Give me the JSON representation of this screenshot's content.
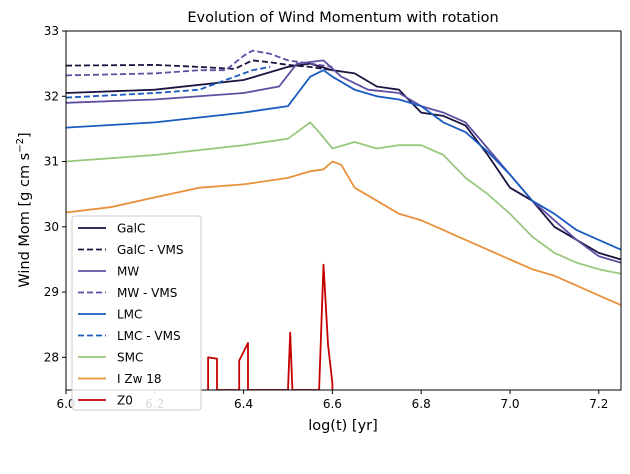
{
  "chart_data": {
    "type": "line",
    "title": "Evolution of Wind Momentum with rotation",
    "xlabel": "log(t) [yr]",
    "ylabel": "Wind Mom [g cm s",
    "ylabel_sup": "−2",
    "ylabel_end": "]",
    "xlim": [
      6.0,
      7.25
    ],
    "ylim": [
      27.5,
      33.0
    ],
    "x_ticks": [
      "6.0",
      "6.2",
      "6.4",
      "6.6",
      "6.8",
      "7.0",
      "7.2"
    ],
    "x_tick_values": [
      6.0,
      6.2,
      6.4,
      6.6,
      6.8,
      7.0,
      7.2
    ],
    "y_ticks": [
      "28",
      "29",
      "30",
      "31",
      "32",
      "33"
    ],
    "y_tick_values": [
      28,
      29,
      30,
      31,
      32,
      33
    ],
    "grid": false,
    "legend_position": "lower-left",
    "series": [
      {
        "name": "GalC",
        "color": "#1c1340",
        "dash": "solid",
        "x": [
          6.0,
          6.2,
          6.4,
          6.5,
          6.55,
          6.6,
          6.65,
          6.7,
          6.75,
          6.8,
          6.85,
          6.9,
          6.95,
          7.0,
          7.05,
          7.1,
          7.15,
          7.2,
          7.25
        ],
        "y": [
          32.05,
          32.1,
          32.25,
          32.45,
          32.5,
          32.4,
          32.35,
          32.15,
          32.1,
          31.75,
          31.7,
          31.55,
          31.1,
          30.6,
          30.4,
          30.0,
          29.8,
          29.6,
          29.5
        ]
      },
      {
        "name": "GalC - VMS",
        "color": "#1c1340",
        "dash": "dashed",
        "x": [
          6.0,
          6.2,
          6.3,
          6.38,
          6.42,
          6.46,
          6.5,
          6.55,
          6.6
        ],
        "y": [
          32.47,
          32.48,
          32.45,
          32.42,
          32.55,
          32.52,
          32.48,
          32.45,
          32.4
        ]
      },
      {
        "name": "MW",
        "color": "#5e4fa2",
        "dash": "solid",
        "x": [
          6.0,
          6.2,
          6.4,
          6.48,
          6.52,
          6.58,
          6.62,
          6.68,
          6.75,
          6.8,
          6.85,
          6.9,
          6.95,
          7.0,
          7.05,
          7.1,
          7.15,
          7.2,
          7.25
        ],
        "y": [
          31.9,
          31.95,
          32.05,
          32.15,
          32.5,
          32.55,
          32.3,
          32.1,
          32.05,
          31.85,
          31.75,
          31.6,
          31.2,
          30.8,
          30.4,
          30.1,
          29.8,
          29.55,
          29.45
        ]
      },
      {
        "name": "MW - VMS",
        "color": "#5e4fa2",
        "dash": "dashed",
        "x": [
          6.0,
          6.2,
          6.3,
          6.36,
          6.4,
          6.42,
          6.46,
          6.5,
          6.55,
          6.6
        ],
        "y": [
          32.32,
          32.35,
          32.4,
          32.4,
          32.62,
          32.7,
          32.65,
          32.55,
          32.5,
          32.45
        ]
      },
      {
        "name": "LMC",
        "color": "#1a5bbf",
        "dash": "solid",
        "x": [
          6.0,
          6.2,
          6.4,
          6.5,
          6.55,
          6.58,
          6.6,
          6.65,
          6.7,
          6.75,
          6.8,
          6.85,
          6.9,
          6.95,
          7.0,
          7.05,
          7.1,
          7.15,
          7.2,
          7.25
        ],
        "y": [
          31.52,
          31.6,
          31.75,
          31.85,
          32.3,
          32.4,
          32.3,
          32.1,
          32.0,
          31.95,
          31.85,
          31.6,
          31.45,
          31.15,
          30.8,
          30.4,
          30.2,
          29.95,
          29.8,
          29.65
        ]
      },
      {
        "name": "LMC - VMS",
        "color": "#1a5bbf",
        "dash": "dashed",
        "x": [
          6.0,
          6.2,
          6.3,
          6.34,
          6.38,
          6.42,
          6.46
        ],
        "y": [
          31.98,
          32.05,
          32.1,
          32.2,
          32.3,
          32.4,
          32.45
        ]
      },
      {
        "name": "SMC",
        "color": "#99c87e",
        "dash": "solid",
        "x": [
          6.0,
          6.2,
          6.4,
          6.5,
          6.55,
          6.57,
          6.6,
          6.65,
          6.7,
          6.75,
          6.8,
          6.85,
          6.9,
          6.95,
          7.0,
          7.05,
          7.1,
          7.15,
          7.2,
          7.25
        ],
        "y": [
          31.0,
          31.1,
          31.25,
          31.35,
          31.6,
          31.45,
          31.2,
          31.3,
          31.2,
          31.25,
          31.25,
          31.1,
          30.75,
          30.5,
          30.2,
          29.85,
          29.6,
          29.45,
          29.35,
          29.28
        ]
      },
      {
        "name": "I Zw 18",
        "color": "#e8913a",
        "dash": "solid",
        "x": [
          6.0,
          6.1,
          6.2,
          6.3,
          6.4,
          6.5,
          6.55,
          6.58,
          6.6,
          6.62,
          6.65,
          6.7,
          6.75,
          6.8,
          6.85,
          6.9,
          6.95,
          7.0,
          7.05,
          7.1,
          7.15,
          7.2,
          7.25
        ],
        "y": [
          30.22,
          30.3,
          30.45,
          30.6,
          30.65,
          30.75,
          30.85,
          30.88,
          31.0,
          30.95,
          30.6,
          30.4,
          30.2,
          30.1,
          29.95,
          29.8,
          29.65,
          29.5,
          29.35,
          29.25,
          29.1,
          28.95,
          28.8
        ]
      },
      {
        "name": "Z0",
        "color": "#c40000",
        "dash": "solid",
        "x": [
          6.32,
          6.32,
          6.34,
          6.34,
          6.39,
          6.39,
          6.41,
          6.41,
          6.5,
          6.505,
          6.51,
          6.51,
          6.57,
          6.58,
          6.59,
          6.6,
          6.6
        ],
        "y": [
          27.5,
          28.0,
          27.98,
          27.5,
          27.5,
          27.95,
          28.22,
          27.5,
          27.5,
          28.38,
          27.5,
          27.5,
          27.5,
          29.42,
          28.2,
          27.6,
          27.5
        ]
      }
    ]
  }
}
